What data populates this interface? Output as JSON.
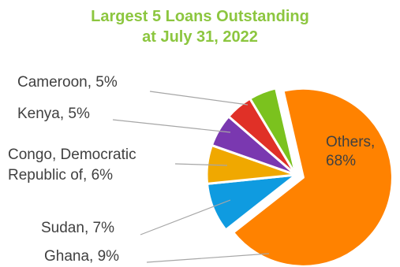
{
  "chart_data": {
    "type": "pie",
    "title_lines": [
      "Largest 5 Loans Outstanding",
      "at July 31, 2022"
    ],
    "unit": "%",
    "slices": [
      {
        "name": "Others",
        "value": 68,
        "color": "#ff8200",
        "label_lines": [
          "Others,",
          "68%"
        ]
      },
      {
        "name": "Ghana",
        "value": 9,
        "color": "#0f9be0",
        "label_lines": [
          "Ghana, 9%"
        ]
      },
      {
        "name": "Sudan",
        "value": 7,
        "color": "#f0a800",
        "label_lines": [
          "Sudan, 7%"
        ]
      },
      {
        "name": "Congo, Democratic Republic of",
        "value": 6,
        "color": "#7a38b0",
        "label_lines": [
          "Congo, Democratic",
          "Republic of, 6%"
        ]
      },
      {
        "name": "Kenya",
        "value": 5,
        "color": "#e03027",
        "label_lines": [
          "Kenya, 5%"
        ]
      },
      {
        "name": "Cameroon",
        "value": 5,
        "color": "#7bc21e",
        "label_lines": [
          "Cameroon, 5%"
        ]
      }
    ]
  }
}
